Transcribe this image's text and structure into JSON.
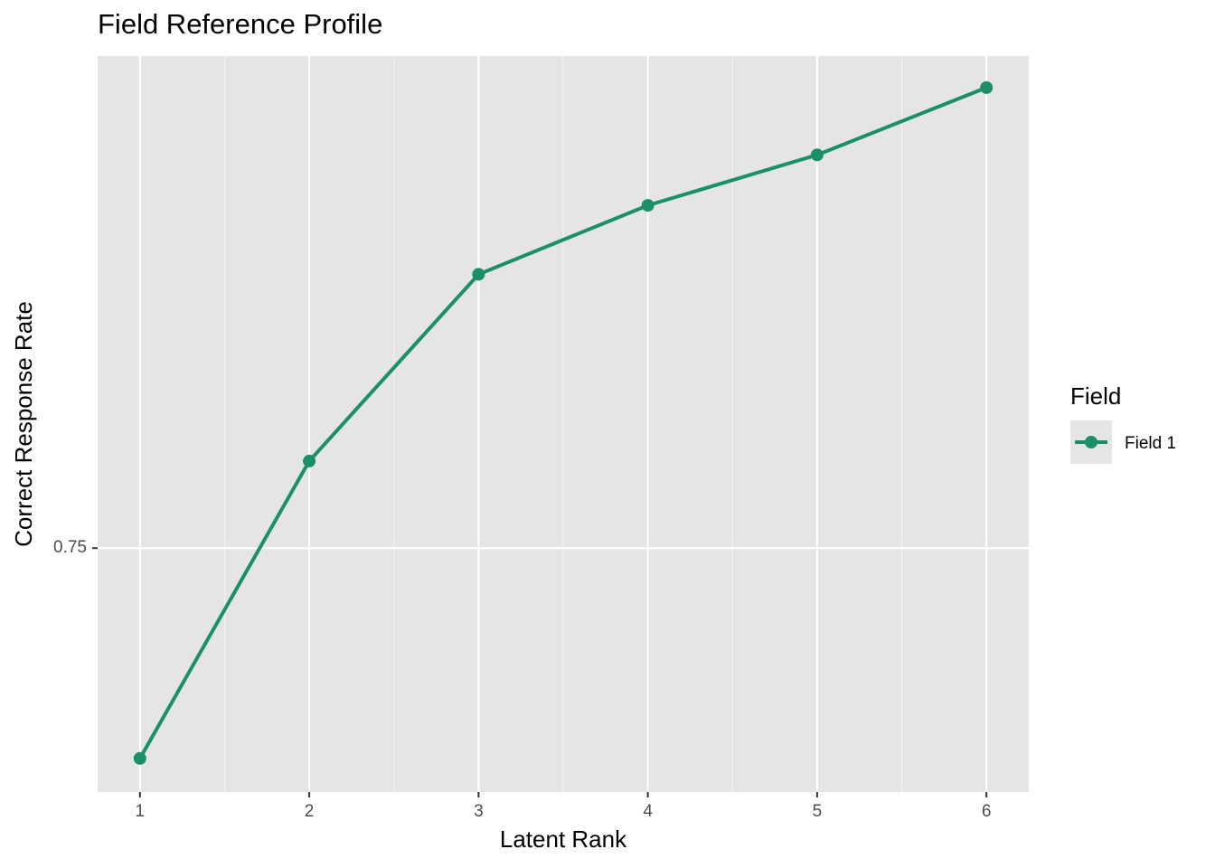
{
  "chart_data": {
    "type": "line",
    "title": "Field Reference Profile",
    "x_label": "Latent Rank",
    "y_label": "Correct Response Rate",
    "x": [
      1,
      2,
      3,
      4,
      5,
      6
    ],
    "series": [
      {
        "name": "Field 1",
        "color": "#1b9068",
        "values": [
          0.7,
          0.7707,
          0.8151,
          0.8315,
          0.8435,
          0.8595
        ]
      }
    ],
    "xlim": [
      0.75,
      6.25
    ],
    "xticks": [
      1,
      2,
      3,
      4,
      5,
      6
    ],
    "ylim": [
      0.692,
      0.867
    ],
    "yticks": [
      0.75
    ],
    "grid": true,
    "legend_title": "Field",
    "legend_position": "right"
  }
}
